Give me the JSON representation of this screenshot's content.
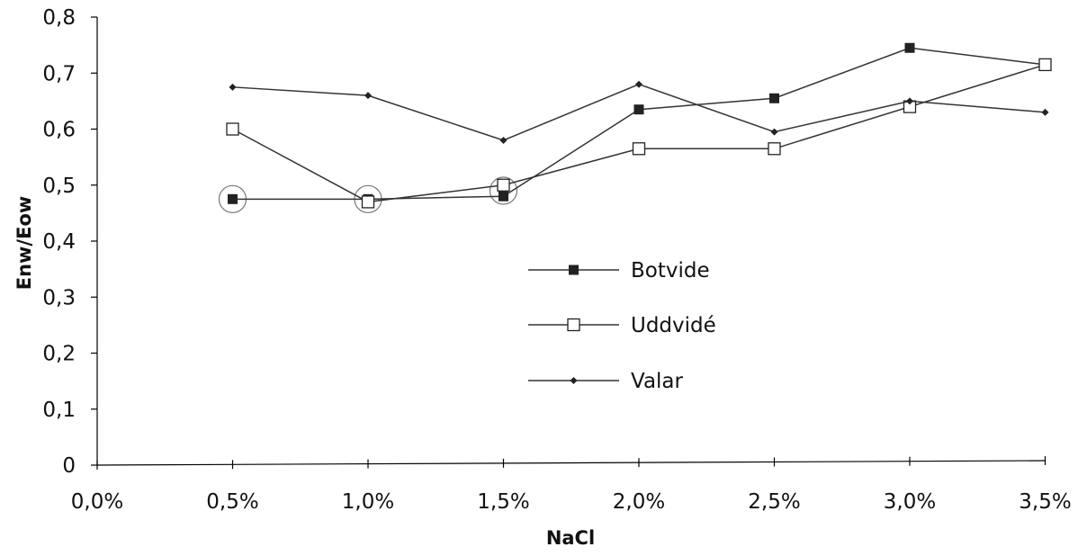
{
  "chart_data": {
    "type": "line",
    "title": "",
    "xlabel": "NaCl",
    "ylabel": "Enw/Eow",
    "categories": [
      "0,0%",
      "0,5%",
      "1,0%",
      "1,5%",
      "2,0%",
      "2,5%",
      "3,0%",
      "3,5%"
    ],
    "ylim": [
      0,
      0.8
    ],
    "yticks": [
      "0",
      "0,1",
      "0,2",
      "0,3",
      "0,4",
      "0,5",
      "0,6",
      "0,7",
      "0,8"
    ],
    "grid": false,
    "legend_position": "center-right",
    "series": [
      {
        "name": "Botvide",
        "marker": "square-filled",
        "values": [
          null,
          0.475,
          0.475,
          0.48,
          0.635,
          0.655,
          0.745,
          0.715
        ]
      },
      {
        "name": "Uddvidé",
        "marker": "square-open",
        "values": [
          null,
          0.6,
          0.47,
          0.5,
          0.565,
          0.565,
          0.64,
          0.715
        ]
      },
      {
        "name": "Valar",
        "marker": "diamond-small",
        "values": [
          null,
          0.675,
          0.66,
          0.58,
          0.68,
          0.595,
          0.65,
          0.63
        ]
      }
    ],
    "circled_points": [
      {
        "category": "0,5%",
        "value": 0.475
      },
      {
        "category": "1,0%",
        "value": 0.475
      },
      {
        "category": "1,5%",
        "value": 0.49
      }
    ]
  }
}
